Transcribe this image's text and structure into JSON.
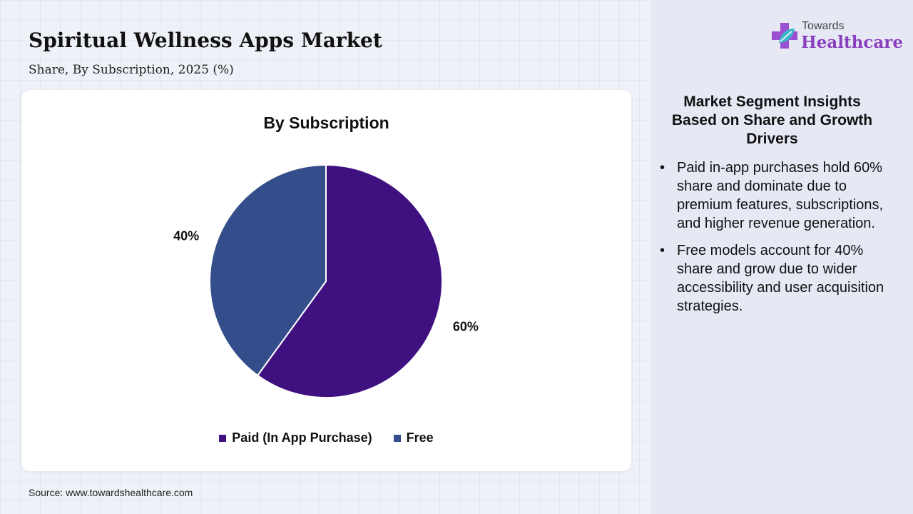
{
  "header": {
    "title": "Spiritual Wellness Apps Market",
    "subtitle": "Share, By Subscription, 2025 (%)"
  },
  "logo": {
    "top_text": "Towards",
    "main_text": "Healthcare",
    "icon": "medical-cross-leaf-icon"
  },
  "chart_data": {
    "type": "pie",
    "title": "By Subscription",
    "categories": [
      "Paid (In App Purchase)",
      "Free"
    ],
    "values": [
      60,
      40
    ],
    "data_labels": [
      "60%",
      "40%"
    ],
    "colors": [
      "#3e1080",
      "#344e8c"
    ],
    "legend_position": "bottom"
  },
  "insights": {
    "title": "Market Segment Insights Based on Share and Growth Drivers",
    "bullet_symbol": "•",
    "items": [
      "Paid in-app purchases hold 60% share and dominate due to premium features, subscriptions, and higher revenue generation.",
      "Free models account for 40% share and grow due to wider accessibility and user acquisition strategies."
    ]
  },
  "footer": {
    "source": "Source: www.towardshealthcare.com"
  }
}
